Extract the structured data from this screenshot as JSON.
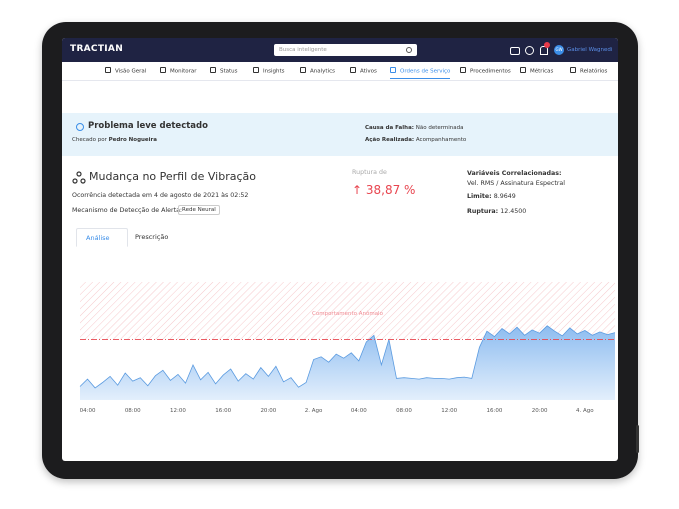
{
  "header": {
    "logo": "TRACTIAN",
    "search": "Busca inteligente",
    "avatar": "GW",
    "user": "Gabriel Wagnedi"
  },
  "nav": [
    "Visão Geral",
    "Monitorar",
    "Status",
    "Insights",
    "Analytics",
    "Ativos",
    "Ordens de Serviço",
    "Procedimentos",
    "Métricas",
    "Relatórios"
  ],
  "alert": {
    "title": "Problema leve detectado",
    "checked_label": "Checado por",
    "checked_by": "Pedro Nogueira",
    "cause_label": "Causa da Falha:",
    "cause": "Não determinada",
    "action_label": "Ação Realizada:",
    "action": "Acompanhamento"
  },
  "event": {
    "title": "Mudança no Perfil de Vibração",
    "occurrence": "Ocorrência detectada em 4 de agosto de 2021 às 02:52",
    "mechanism_label": "Mecanismo de Detecção de Alerta:",
    "mechanism": "Rede Neural",
    "rupture_label": "Ruptura de",
    "rupture": "↑ 38,87 %"
  },
  "variables": {
    "title": "Variáveis Correlacionadas:",
    "name": "Vel. RMS / Assinatura Espectral",
    "limit_label": "Limite:",
    "rupture_label": "Ruptura:",
    "rupture": "12.4500"
  },
  "tabs": [
    "Análise",
    "Prescrição"
  ],
  "chart_data": {
    "type": "area",
    "color": "#5b9be0",
    "annotation": "Comportamento Anômalo",
    "threshold": 8.9649,
    "ylim": [
      0,
      17.5
    ],
    "categories": [
      null,
      "04:00",
      null,
      null,
      null,
      null,
      null,
      "08:00",
      null,
      null,
      null,
      null,
      null,
      "12:00",
      null,
      null,
      null,
      null,
      null,
      "16:00",
      null,
      null,
      null,
      null,
      null,
      "20:00",
      null,
      null,
      null,
      null,
      null,
      "2. Ago",
      null,
      null,
      null,
      null,
      null,
      "04:00",
      null,
      null,
      null,
      null,
      null,
      "08:00",
      null,
      null,
      null,
      null,
      null,
      "12:00",
      null,
      null,
      null,
      null,
      null,
      "16:00",
      null,
      null,
      null,
      null,
      null,
      "20:00",
      null,
      null,
      null,
      null,
      null,
      "4. Ago",
      null,
      null,
      null,
      null
    ],
    "values": [
      2.0,
      3.1,
      1.8,
      2.6,
      3.5,
      2.2,
      4.0,
      2.8,
      3.3,
      2.1,
      3.6,
      4.4,
      2.9,
      3.8,
      2.5,
      5.2,
      3.0,
      4.1,
      2.4,
      3.7,
      4.6,
      2.8,
      3.9,
      3.1,
      4.8,
      3.5,
      5.0,
      2.7,
      3.3,
      1.9,
      2.6,
      6.0,
      6.4,
      5.6,
      6.8,
      6.2,
      7.0,
      5.8,
      8.6,
      9.6,
      5.2,
      9.0,
      3.2,
      3.3,
      3.2,
      3.1,
      3.3,
      3.2,
      3.2,
      3.1,
      3.3,
      3.4,
      3.2,
      7.8,
      10.2,
      9.4,
      10.6,
      9.8,
      10.8,
      9.6,
      10.4,
      9.9,
      11.0,
      10.2,
      9.5,
      10.7,
      9.8,
      10.3,
      9.6,
      10.1,
      9.7,
      10.0
    ]
  }
}
